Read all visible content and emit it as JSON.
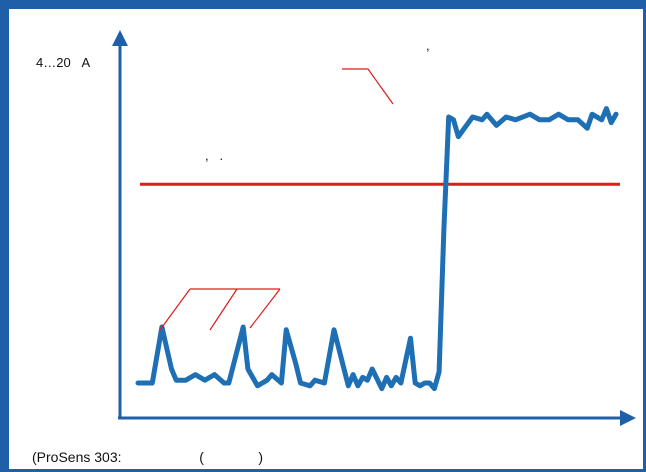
{
  "colors": {
    "frame": "#1f5fa8",
    "axis": "#1f5fa8",
    "signal": "#1f6fb5",
    "threshold": "#e01b1b",
    "callout": "#e01b1b"
  },
  "labels": {
    "y_axis": "4…20   А",
    "note_top": ",",
    "note_threshold": ",   .",
    "caption": "(ProSens 303:                    (              )"
  },
  "chart_data": {
    "type": "line",
    "title": "",
    "xlabel": "",
    "ylabel": "4…20   А",
    "xlim": [
      0,
      100
    ],
    "ylim": [
      0,
      100
    ],
    "grid": false,
    "threshold": {
      "y": 76
    },
    "series": [
      {
        "x": [
          0,
          3,
          5,
          7,
          8,
          10,
          12,
          14,
          16,
          18,
          19,
          22,
          23,
          25,
          27,
          28,
          30,
          31,
          33,
          34,
          36,
          37,
          39,
          41,
          44,
          45,
          46,
          47,
          48,
          49,
          51,
          52,
          53,
          54,
          55,
          57,
          58,
          59,
          60,
          61,
          62,
          63,
          64,
          65,
          66,
          67,
          70,
          72,
          73,
          75,
          77,
          79,
          82,
          84,
          86,
          87,
          88,
          90,
          92,
          94,
          95,
          97,
          98,
          99,
          100
        ],
        "y": [
          5,
          5,
          25,
          10,
          6,
          6,
          8,
          6,
          8,
          5,
          5,
          25,
          10,
          4,
          6,
          8,
          5,
          24,
          12,
          5,
          4,
          6,
          5,
          24,
          4,
          8,
          4,
          7,
          6,
          10,
          3,
          7,
          4,
          7,
          5,
          21,
          5,
          4,
          5,
          5,
          3,
          9,
          60,
          100,
          99,
          93,
          100,
          99,
          101,
          97,
          100,
          99,
          101,
          99,
          99,
          100,
          101,
          99,
          99,
          96,
          101,
          99,
          103,
          98,
          101
        ]
      }
    ]
  }
}
